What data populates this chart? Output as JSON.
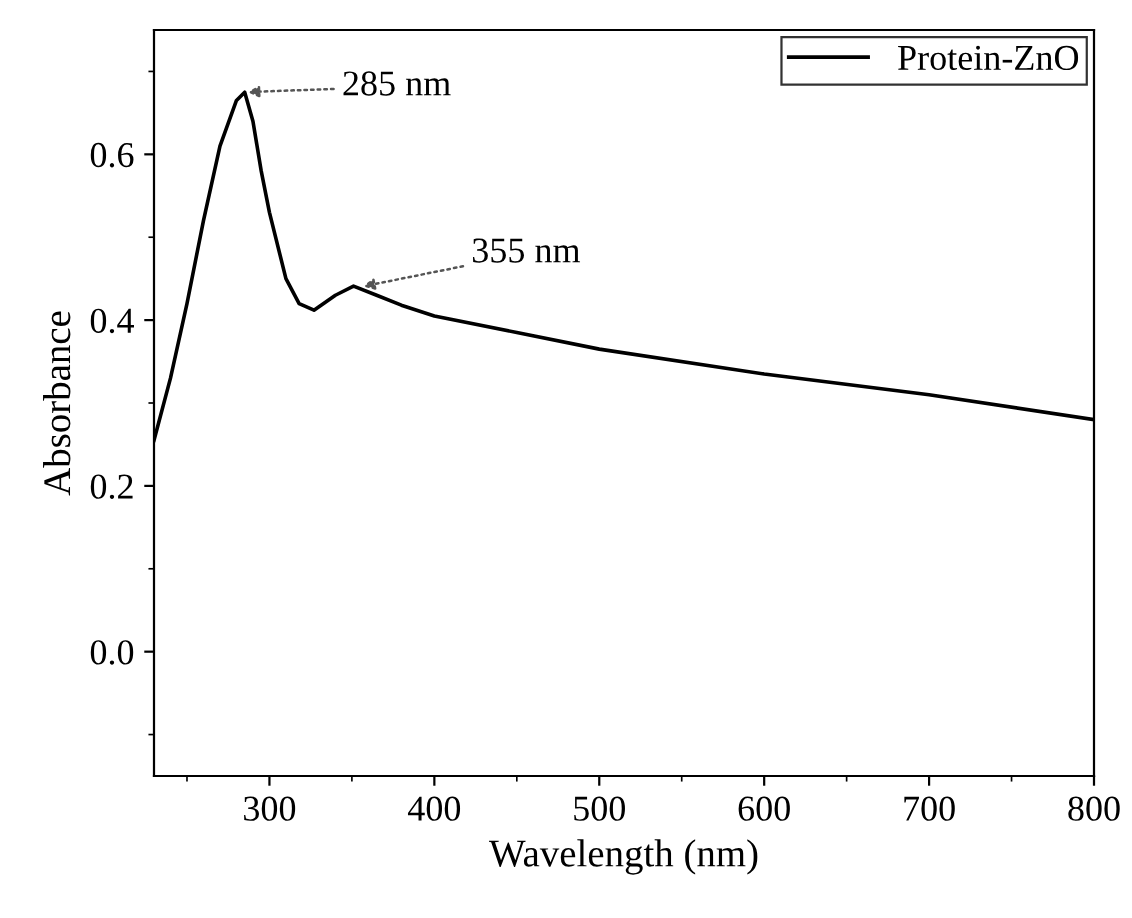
{
  "chart_data": {
    "type": "line",
    "xlabel": "Wavelength (nm)",
    "ylabel": "Absorbance",
    "series": [
      {
        "name": "Protein-ZnO",
        "color": "#000000",
        "x": [
          230,
          240,
          250,
          260,
          270,
          280,
          285,
          290,
          295,
          300,
          310,
          318,
          327,
          340,
          351,
          365,
          380,
          400,
          450,
          500,
          600,
          700,
          800
        ],
        "values": [
          0.255,
          0.33,
          0.42,
          0.52,
          0.61,
          0.665,
          0.675,
          0.64,
          0.58,
          0.53,
          0.45,
          0.42,
          0.412,
          0.43,
          0.441,
          0.43,
          0.418,
          0.405,
          0.385,
          0.365,
          0.335,
          0.31,
          0.28
        ]
      }
    ],
    "annotations": [
      {
        "text": "285 nm",
        "x": 285,
        "y": 0.675
      },
      {
        "text": "355 nm",
        "x": 355,
        "y": 0.44
      }
    ],
    "xlim": [
      230,
      800
    ],
    "xticks": [
      300,
      400,
      500,
      600,
      700,
      800
    ],
    "ylim": [
      -0.15,
      0.75
    ],
    "yticks": [
      {
        "value": 0,
        "label": "0.0"
      },
      {
        "value": 0.2,
        "label": "0.2"
      },
      {
        "value": 0.4,
        "label": "0.4"
      },
      {
        "value": 0.6,
        "label": "0.6"
      }
    ],
    "legend": "top right",
    "grid": false,
    "line_style": "solid"
  }
}
